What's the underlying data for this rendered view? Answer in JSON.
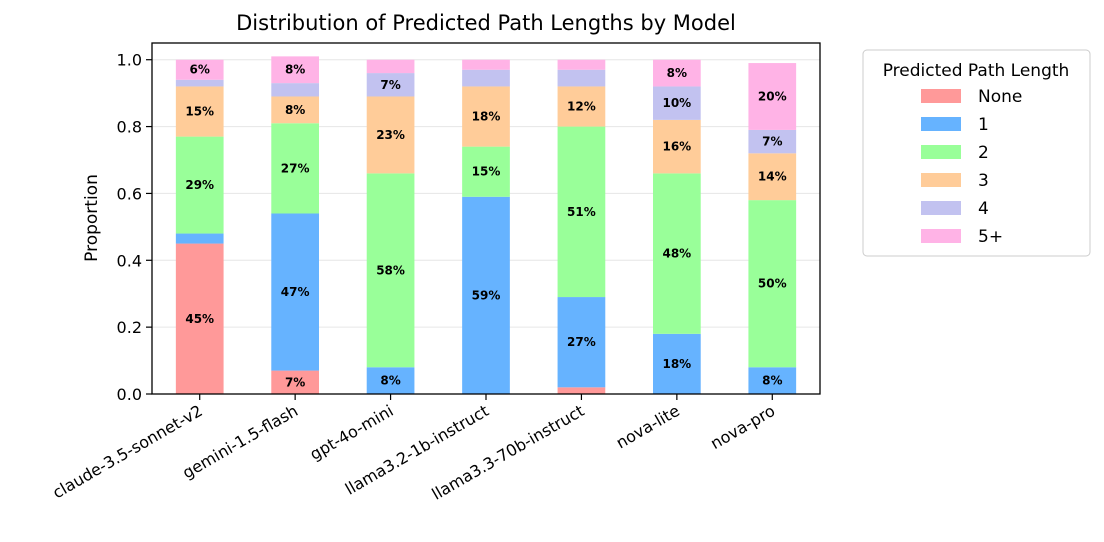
{
  "chart_data": {
    "type": "bar",
    "stacked": true,
    "title": "Distribution of Predicted Path Lengths by Model",
    "xlabel": "",
    "ylabel": "Proportion",
    "ylim": [
      0,
      1.05
    ],
    "yticks": [
      "0.0",
      "0.2",
      "0.4",
      "0.6",
      "0.8",
      "1.0"
    ],
    "grid": "horizontal",
    "legend_title": "Predicted Path Length",
    "legend_position": "outside-right",
    "categories": [
      "claude-3.5-sonnet-v2",
      "gemini-1.5-flash",
      "gpt-4o-mini",
      "llama3.2-1b-instruct",
      "llama3.3-70b-instruct",
      "nova-lite",
      "nova-pro"
    ],
    "series": [
      {
        "name": "None",
        "color": "#ff9999",
        "values": [
          0.45,
          0.07,
          0.0,
          0.0,
          0.02,
          0.0,
          0.0
        ],
        "labels": [
          "45%",
          "7%",
          "",
          "",
          "",
          "",
          ""
        ]
      },
      {
        "name": "1",
        "color": "#66b3ff",
        "values": [
          0.03,
          0.47,
          0.08,
          0.59,
          0.27,
          0.18,
          0.08
        ],
        "labels": [
          "",
          "47%",
          "8%",
          "59%",
          "27%",
          "18%",
          "8%"
        ]
      },
      {
        "name": "2",
        "color": "#99ff99",
        "values": [
          0.29,
          0.27,
          0.58,
          0.15,
          0.51,
          0.48,
          0.5
        ],
        "labels": [
          "29%",
          "27%",
          "58%",
          "15%",
          "51%",
          "48%",
          "50%"
        ]
      },
      {
        "name": "3",
        "color": "#ffcc99",
        "values": [
          0.15,
          0.08,
          0.23,
          0.18,
          0.12,
          0.16,
          0.14
        ],
        "labels": [
          "15%",
          "8%",
          "23%",
          "18%",
          "12%",
          "16%",
          "14%"
        ]
      },
      {
        "name": "4",
        "color": "#c2c2f0",
        "values": [
          0.02,
          0.04,
          0.07,
          0.05,
          0.05,
          0.1,
          0.07
        ],
        "labels": [
          "",
          "",
          "7%",
          "",
          "",
          "10%",
          "7%"
        ]
      },
      {
        "name": "5+",
        "color": "#ffb3e6",
        "values": [
          0.06,
          0.08,
          0.04,
          0.03,
          0.03,
          0.08,
          0.2
        ],
        "labels": [
          "6%",
          "8%",
          "",
          "",
          "",
          "8%",
          "20%"
        ]
      }
    ]
  }
}
